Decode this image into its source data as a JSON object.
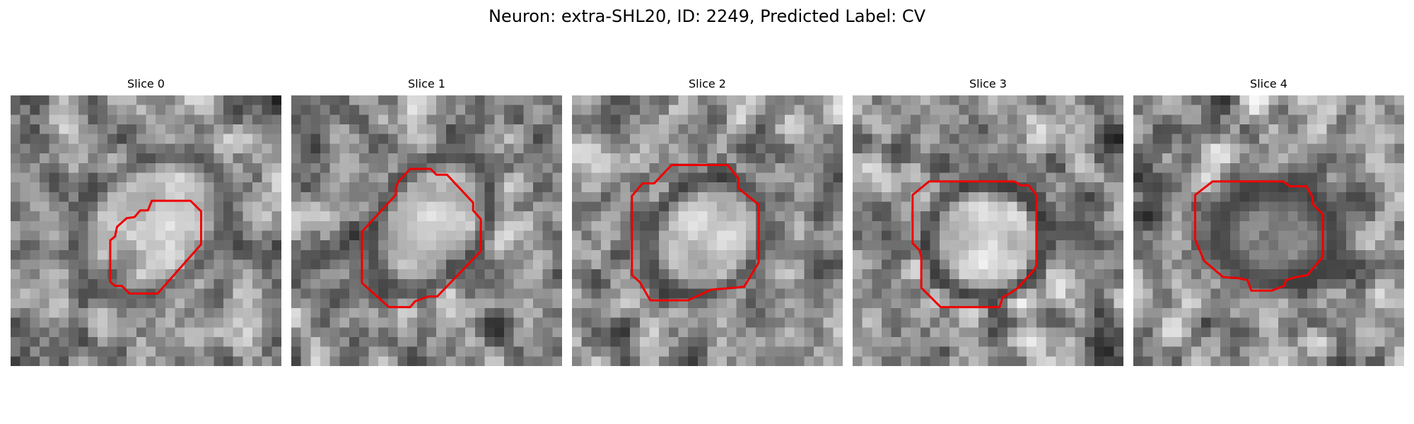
{
  "figure": {
    "title": "Neuron: extra-SHL20, ID: 2249, Predicted Label: CV",
    "contour_color": "#ee0000"
  },
  "panels": [
    {
      "title": "Slice 0"
    },
    {
      "title": "Slice 1"
    },
    {
      "title": "Slice 2"
    },
    {
      "title": "Slice 3"
    },
    {
      "title": "Slice 4"
    }
  ]
}
